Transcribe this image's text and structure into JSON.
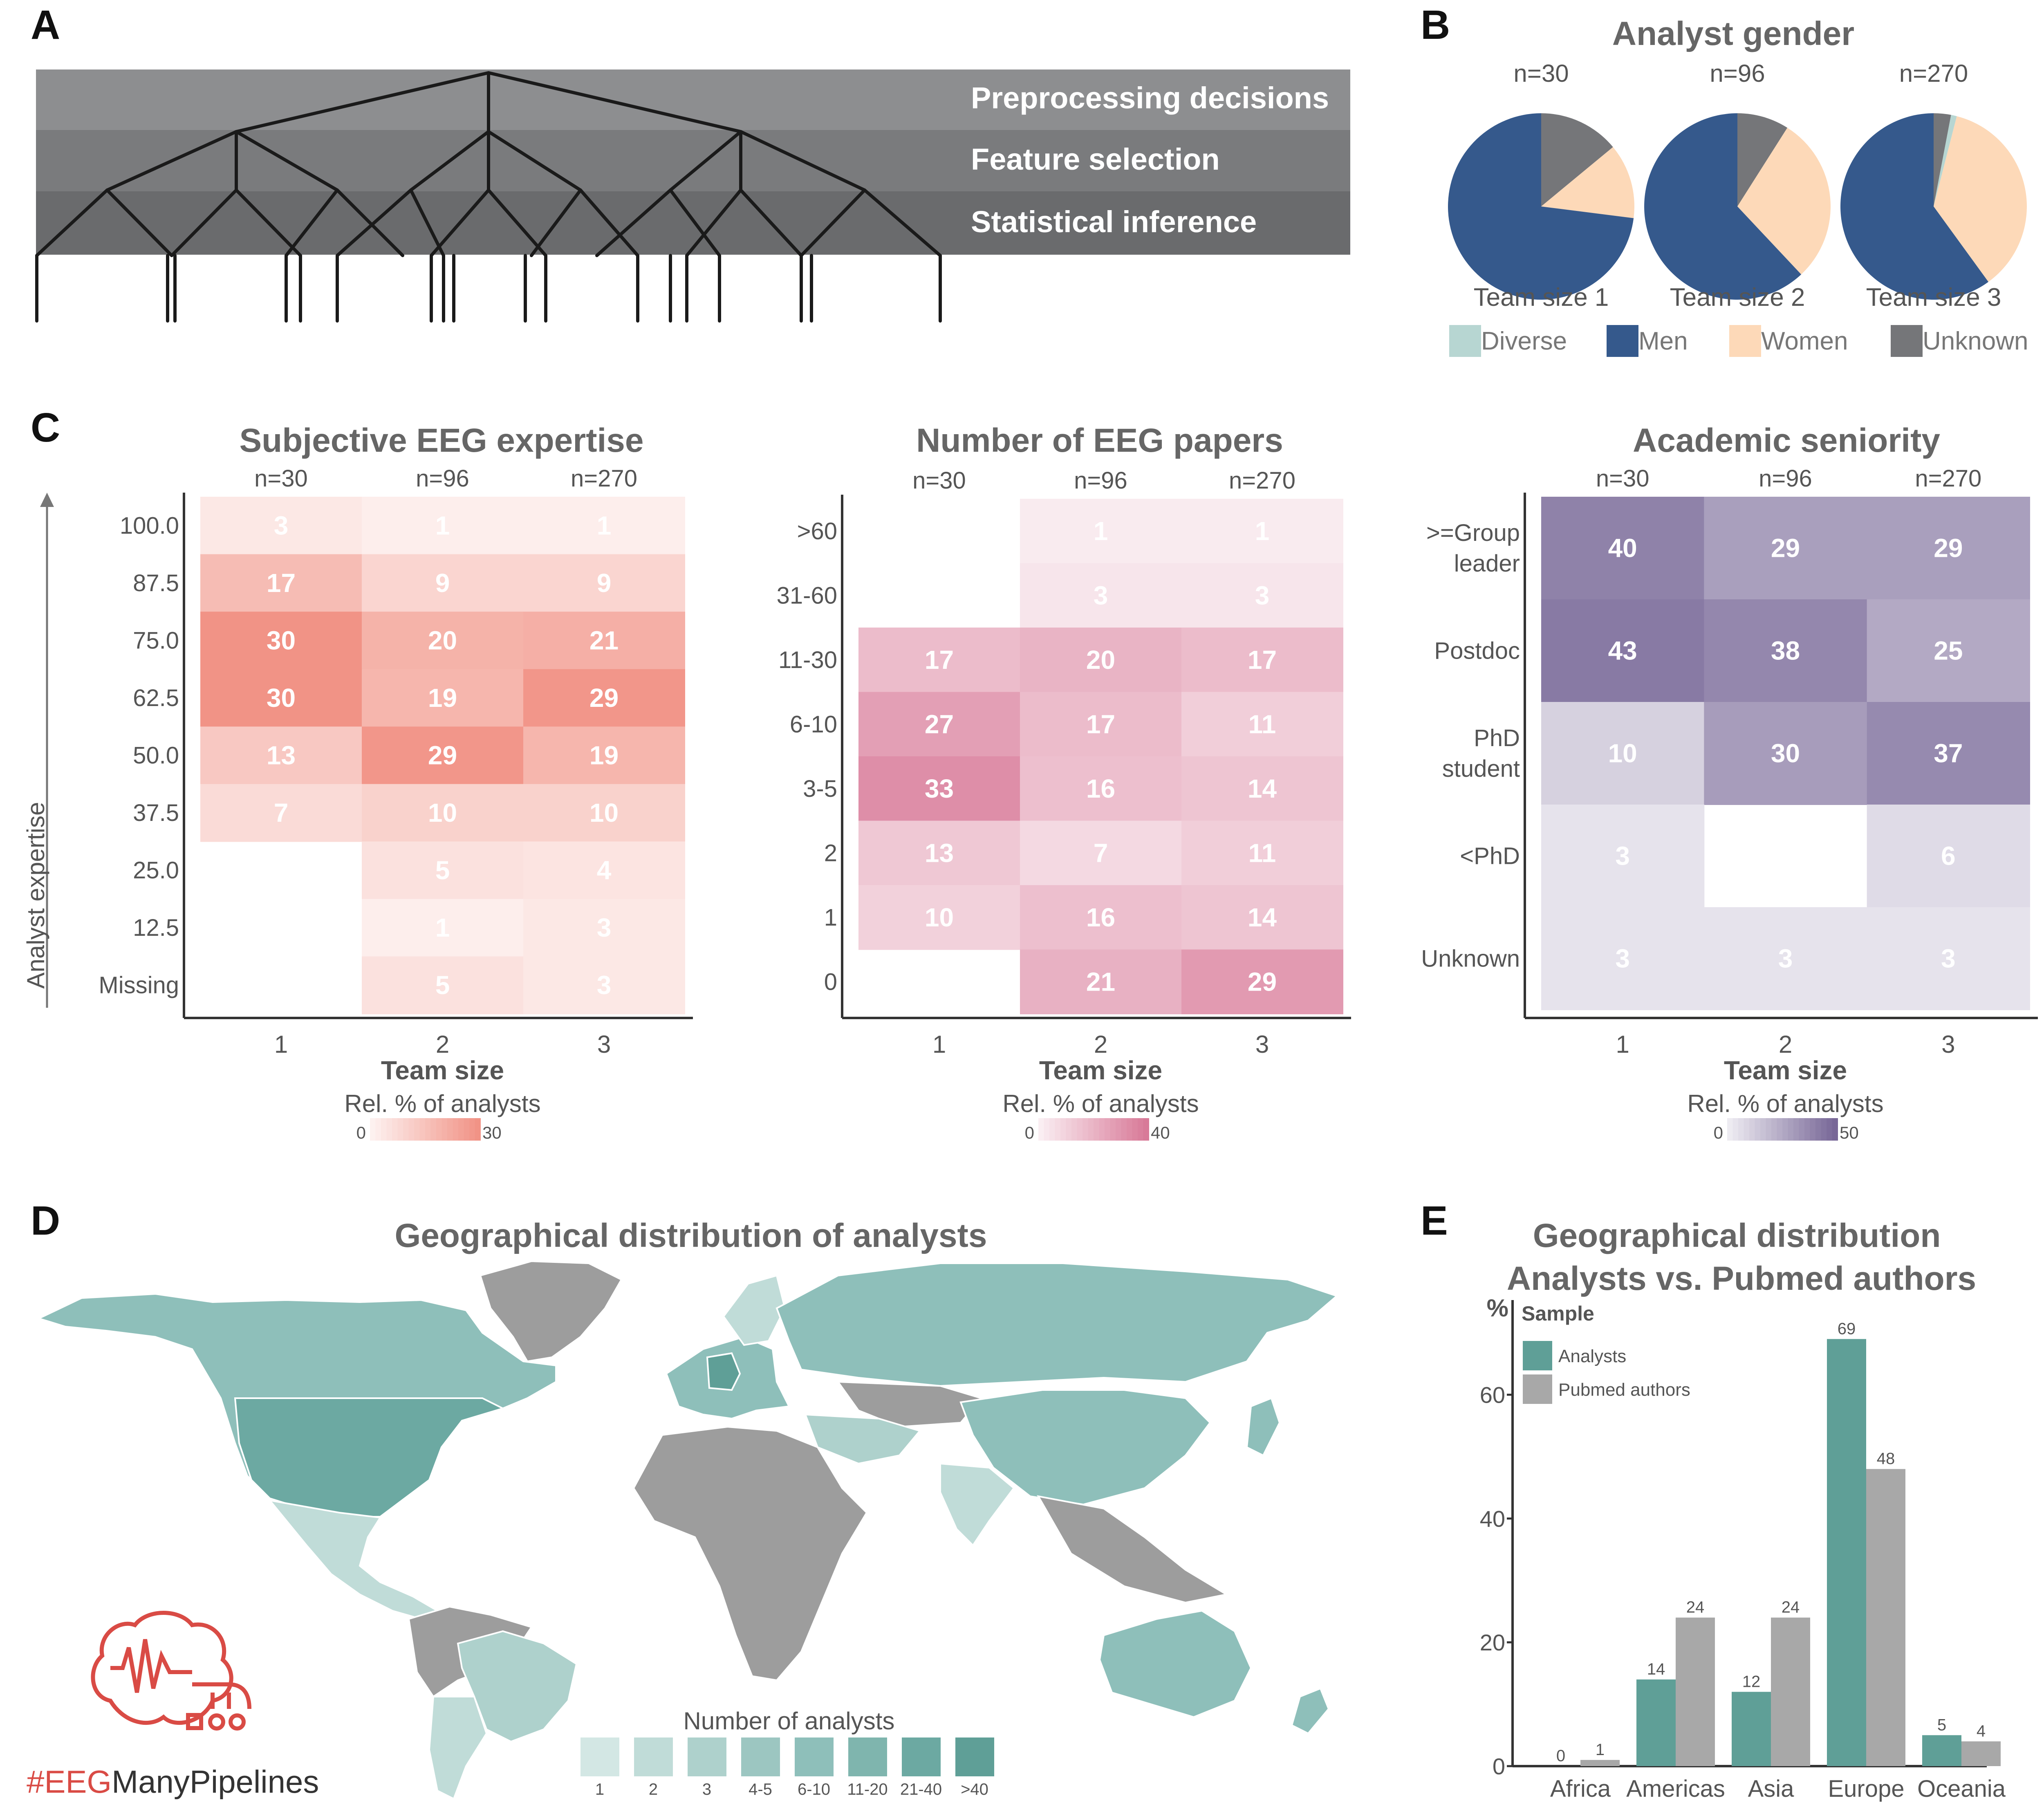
{
  "panels": {
    "A": "A",
    "B": "B",
    "C": "C",
    "D": "D",
    "E": "E"
  },
  "panelA": {
    "bands": [
      "Preprocessing decisions",
      "Feature selection",
      "Statistical inference"
    ]
  },
  "gender": {
    "title": "Analyst gender",
    "legend": [
      "Diverse",
      "Men",
      "Women",
      "Unknown"
    ],
    "colors": {
      "Diverse": "#b7d6d2",
      "Men": "#35598c",
      "Women": "#fdd9b8",
      "Unknown": "#757679"
    },
    "pies": [
      {
        "n": "n=30",
        "label": "Team size 1",
        "values": {
          "Diverse": 0,
          "Men": 73,
          "Women": 13,
          "Unknown": 14
        }
      },
      {
        "n": "n=96",
        "label": "Team size 2",
        "values": {
          "Diverse": 0,
          "Men": 62,
          "Women": 29,
          "Unknown": 9
        }
      },
      {
        "n": "n=270",
        "label": "Team size 3",
        "values": {
          "Diverse": 1,
          "Men": 60,
          "Women": 36,
          "Unknown": 3
        }
      }
    ]
  },
  "heatmaps": [
    {
      "title": "Subjective EEG expertise",
      "ylabel": "Analyst expertise",
      "xlabel": "Team size",
      "x": [
        "1",
        "2",
        "3"
      ],
      "n": [
        "n=30",
        "n=96",
        "n=270"
      ],
      "y": [
        "100.0",
        "87.5",
        "75.0",
        "62.5",
        "50.0",
        "37.5",
        "25.0",
        "12.5",
        "Missing"
      ],
      "values": [
        [
          3,
          1,
          1
        ],
        [
          17,
          9,
          9
        ],
        [
          30,
          20,
          21
        ],
        [
          30,
          19,
          29
        ],
        [
          13,
          29,
          19
        ],
        [
          7,
          10,
          10
        ],
        [
          null,
          5,
          4
        ],
        [
          null,
          1,
          3
        ],
        [
          null,
          5,
          3
        ]
      ],
      "legend_title": "Rel. % of analysts",
      "legend_min": "0",
      "legend_max": "30",
      "max": 30,
      "color": "#f08a7c"
    },
    {
      "title": "Number of EEG papers",
      "xlabel": "Team size",
      "x": [
        "1",
        "2",
        "3"
      ],
      "n": [
        "n=30",
        "n=96",
        "n=270"
      ],
      "y": [
        ">60",
        "31-60",
        "11-30",
        "6-10",
        "3-5",
        "2",
        "1",
        "0"
      ],
      "values": [
        [
          null,
          1,
          1
        ],
        [
          null,
          3,
          3
        ],
        [
          17,
          20,
          17
        ],
        [
          27,
          17,
          11
        ],
        [
          33,
          16,
          14
        ],
        [
          13,
          7,
          11
        ],
        [
          10,
          16,
          14
        ],
        [
          null,
          21,
          29
        ]
      ],
      "legend_title": "Rel. % of analysts",
      "legend_min": "0",
      "legend_max": "40",
      "max": 40,
      "color": "#d56e8f"
    },
    {
      "title": "Academic seniority",
      "xlabel": "Team size",
      "x": [
        "1",
        "2",
        "3"
      ],
      "n": [
        "n=30",
        "n=96",
        "n=270"
      ],
      "y": [
        ">=Group\nleader",
        "Postdoc",
        "PhD\nstudent",
        "<PhD",
        "Unknown"
      ],
      "values": [
        [
          40,
          29,
          29
        ],
        [
          43,
          38,
          25
        ],
        [
          10,
          30,
          37
        ],
        [
          3,
          null,
          6
        ],
        [
          3,
          3,
          3
        ]
      ],
      "legend_title": "Rel. % of analysts",
      "legend_min": "0",
      "legend_max": "50",
      "max": 50,
      "color": "#6c5a8e"
    }
  ],
  "map": {
    "title": "Geographical distribution of analysts",
    "legend_title": "Number of analysts",
    "legend": [
      "1",
      "2",
      "3",
      "4-5",
      "6-10",
      "11-20",
      "21-40",
      ">40"
    ],
    "legend_colors": [
      "#d3e7e4",
      "#c0dcd8",
      "#aed1cc",
      "#9cc6c1",
      "#8ebfba",
      "#7fb5ae",
      "#6ca9a2",
      "#5f9f97"
    ],
    "no_data_color": "#9d9d9d",
    "logo_text": "#EEGManyPipelines",
    "logo_text_a": "#EEG",
    "logo_text_b": "ManyPipelines"
  },
  "chart_data": {
    "type": "bar",
    "title": "Geographical distribution\nAnalysts vs. Pubmed authors",
    "ylabel": "%",
    "categories": [
      "Africa",
      "Americas",
      "Asia",
      "Europe",
      "Oceania"
    ],
    "series": [
      {
        "name": "Analysts",
        "values": [
          0,
          14,
          12,
          69,
          5
        ],
        "color": "#5f9f97"
      },
      {
        "name": "Pubmed authors",
        "values": [
          1,
          24,
          24,
          48,
          4
        ],
        "color": "#a8a8a8"
      }
    ],
    "legend_title": "Sample",
    "yticks": [
      "0",
      "20",
      "40",
      "60"
    ],
    "ylim": [
      0,
      71
    ]
  }
}
